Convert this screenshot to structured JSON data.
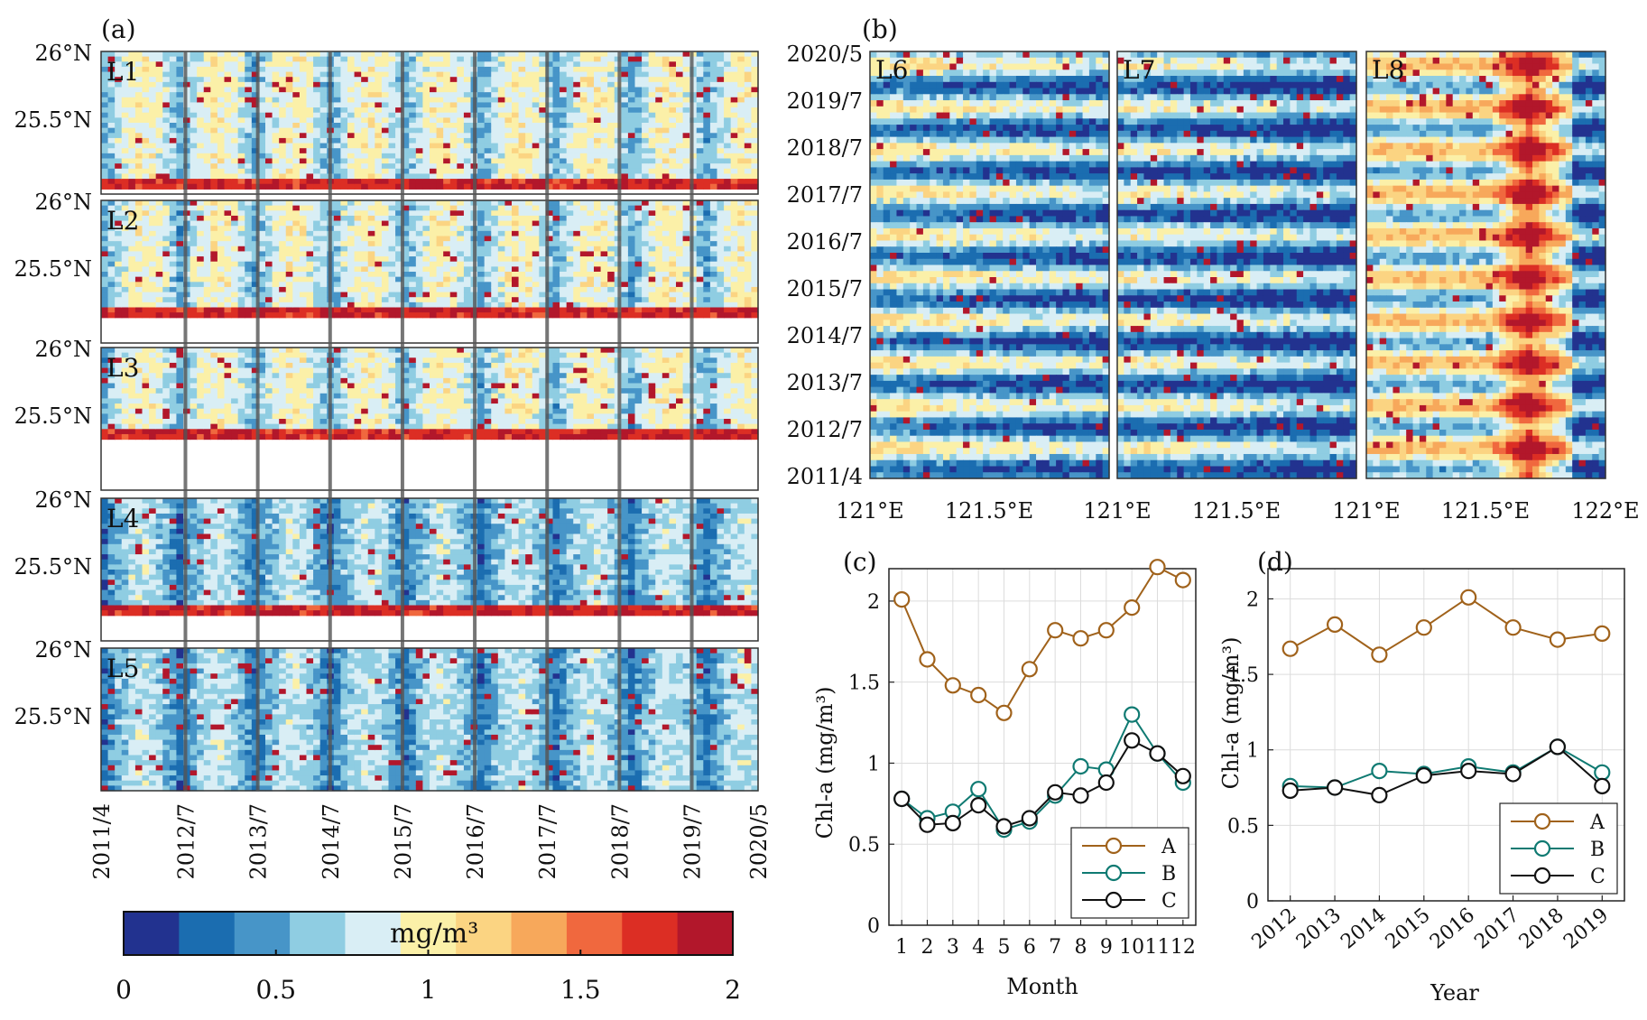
{
  "panel_a": {
    "label": "(a)",
    "panels": [
      {
        "name": "L1",
        "white_frac": 0.05
      },
      {
        "name": "L2",
        "white_frac": 0.2
      },
      {
        "name": "L3",
        "white_frac": 0.36
      },
      {
        "name": "L4",
        "white_frac": 0.18
      },
      {
        "name": "L5",
        "white_frac": 0.0
      }
    ],
    "lat_labels": [
      "26°N",
      "25.5°N"
    ],
    "time_ticks": [
      "2011/4",
      "2012/7",
      "2013/7",
      "2014/7",
      "2015/7",
      "2016/7",
      "2017/7",
      "2018/7",
      "2019/7",
      "2020/5"
    ],
    "time_pos": [
      0,
      0.1284,
      0.2385,
      0.3486,
      0.4587,
      0.5688,
      0.6789,
      0.789,
      0.8991,
      1
    ]
  },
  "panel_b": {
    "label": "(b)",
    "panels": [
      "L6",
      "L7",
      "L8"
    ],
    "time_ticks": [
      "2020/5",
      "2019/7",
      "2018/7",
      "2017/7",
      "2016/7",
      "2015/7",
      "2014/7",
      "2013/7",
      "2012/7",
      "2011/4"
    ],
    "lon_labels": [
      "121°E",
      "121.5°E",
      "121°E",
      "121.5°E",
      "121°E",
      "121.5°E",
      "122°E"
    ]
  },
  "colorbar": {
    "unit": "mg/m³",
    "min": 0,
    "max": 2,
    "tick_labels": [
      "0",
      "0.5",
      "1",
      "1.5",
      "2"
    ],
    "colors": [
      "#22328f",
      "#1b6db0",
      "#4795c8",
      "#8fcde2",
      "#d9eef5",
      "#fbf0a8",
      "#fbd482",
      "#f7a85b",
      "#f0683e",
      "#dc2e24",
      "#b2172b"
    ]
  },
  "chart_data": [
    {
      "id": "c",
      "panel_label": "(c)",
      "type": "line",
      "xlabel": "Month",
      "ylabel": "Chl-a (mg/m³)",
      "categories": [
        "1",
        "2",
        "3",
        "4",
        "5",
        "6",
        "7",
        "8",
        "9",
        "10",
        "11",
        "12"
      ],
      "ylim": [
        0,
        2.2
      ],
      "yticks": [
        "0",
        "0.5",
        "1",
        "1.5",
        "2"
      ],
      "series": [
        {
          "name": "A",
          "color": "#a0621b",
          "values": [
            2.01,
            1.64,
            1.48,
            1.42,
            1.31,
            1.58,
            1.82,
            1.77,
            1.82,
            1.96,
            2.21,
            2.13
          ]
        },
        {
          "name": "B",
          "color": "#0f7a72",
          "values": [
            0.78,
            0.66,
            0.7,
            0.84,
            0.59,
            0.64,
            0.8,
            0.98,
            0.96,
            1.3,
            1.06,
            0.88
          ]
        },
        {
          "name": "C",
          "color": "#111111",
          "values": [
            0.78,
            0.62,
            0.63,
            0.74,
            0.61,
            0.66,
            0.82,
            0.8,
            0.88,
            1.14,
            1.06,
            0.92
          ]
        }
      ],
      "legend": "bottom-right"
    },
    {
      "id": "d",
      "panel_label": "(d)",
      "type": "line",
      "xlabel": "Year",
      "ylabel": "Chl-a (mg/m³)",
      "categories": [
        "2012",
        "2013",
        "2014",
        "2015",
        "2016",
        "2017",
        "2018",
        "2019"
      ],
      "ylim": [
        0,
        2.2
      ],
      "yticks": [
        "0",
        "0.5",
        "1",
        "1.5",
        "2"
      ],
      "series": [
        {
          "name": "A",
          "color": "#a0621b",
          "values": [
            1.67,
            1.83,
            1.63,
            1.81,
            2.01,
            1.81,
            1.73,
            1.77
          ]
        },
        {
          "name": "B",
          "color": "#0f7a72",
          "values": [
            0.76,
            0.75,
            0.86,
            0.84,
            0.89,
            0.85,
            1.02,
            0.85
          ]
        },
        {
          "name": "C",
          "color": "#111111",
          "values": [
            0.73,
            0.75,
            0.7,
            0.83,
            0.86,
            0.84,
            1.02,
            0.76
          ]
        }
      ],
      "legend": "bottom-right"
    }
  ]
}
